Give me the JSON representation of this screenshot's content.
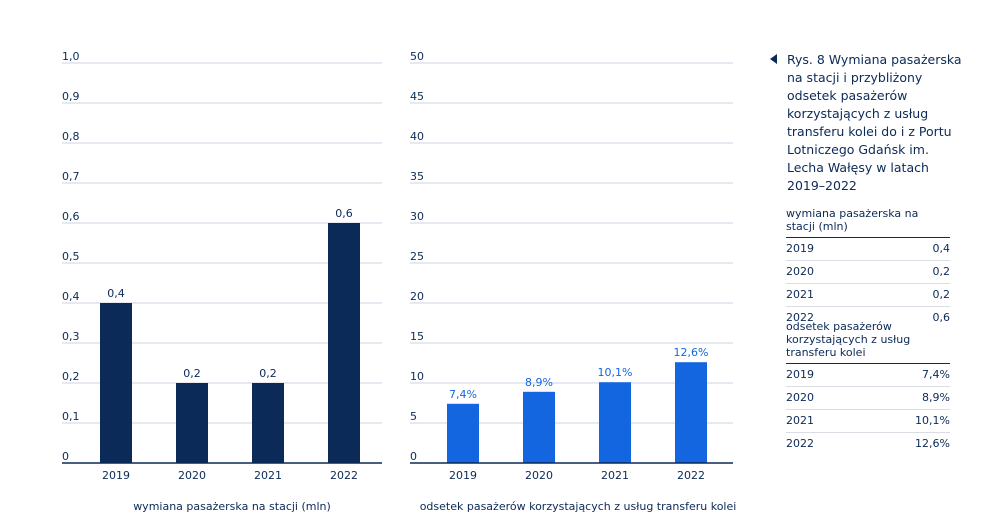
{
  "colors": {
    "dark_navy": "#0b2a57",
    "blue": "#1466e0",
    "grid": "#cdd5e0"
  },
  "charts": {
    "left": {
      "xlabel": "wymiana pasażerska na stacji (mln)",
      "categories": [
        "2019",
        "2020",
        "2021",
        "2022"
      ],
      "ticks": [
        "0",
        "0,1",
        "0,2",
        "0,3",
        "0,4",
        "0,5",
        "0,6",
        "0,7",
        "0,8",
        "0,9",
        "1,0"
      ],
      "labels": [
        "0,4",
        "0,2",
        "0,2",
        "0,6"
      ]
    },
    "right": {
      "xlabel": "odsetek pasażerów korzystających z usług transferu kolei",
      "categories": [
        "2019",
        "2020",
        "2021",
        "2022"
      ],
      "ticks": [
        "0",
        "5",
        "10",
        "15",
        "20",
        "25",
        "30",
        "35",
        "40",
        "45",
        "50"
      ],
      "labels": [
        "7,4%",
        "8,9%",
        "10,1%",
        "12,6%"
      ]
    }
  },
  "caption": "Rys. 8   Wymiana pasażerska na stacji i przybliżony odsetek pasażerów korzystających z usług transferu kolei do i z Portu Lotniczego Gdańsk im. Lecha Wałęsy w latach 2019–2022",
  "table1": {
    "header": "wymiana pasażerska na stacji (mln)",
    "rows": [
      {
        "year": "2019",
        "value": "0,4"
      },
      {
        "year": "2020",
        "value": "0,2"
      },
      {
        "year": "2021",
        "value": "0,2"
      },
      {
        "year": "2022",
        "value": "0,6"
      }
    ]
  },
  "table2": {
    "header": "odsetek pasażerów korzystających z usług transferu kolei",
    "rows": [
      {
        "year": "2019",
        "value": "7,4%"
      },
      {
        "year": "2020",
        "value": "8,9%"
      },
      {
        "year": "2021",
        "value": "10,1%"
      },
      {
        "year": "2022",
        "value": "12,6%"
      }
    ]
  },
  "chart_data": [
    {
      "type": "bar",
      "categories": [
        "2019",
        "2020",
        "2021",
        "2022"
      ],
      "values": [
        0.4,
        0.2,
        0.2,
        0.6
      ],
      "xlabel": "wymiana pasażerska na stacji (mln)",
      "ylabel": "",
      "ylim": [
        0,
        1.0
      ],
      "grid": true,
      "color": "#0b2a57"
    },
    {
      "type": "bar",
      "categories": [
        "2019",
        "2020",
        "2021",
        "2022"
      ],
      "values": [
        7.4,
        8.9,
        10.1,
        12.6
      ],
      "xlabel": "odsetek pasażerów korzystających z usług transferu kolei",
      "ylabel": "",
      "ylim": [
        0,
        50
      ],
      "grid": true,
      "color": "#1466e0"
    }
  ]
}
